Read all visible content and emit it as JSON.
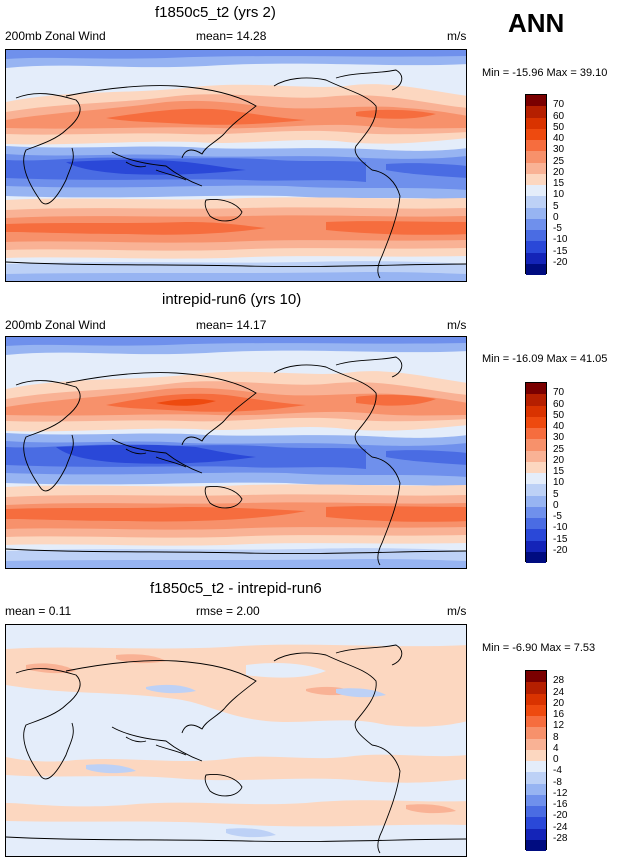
{
  "season": "ANN",
  "panels": [
    {
      "title": "f1850c5_t2 (yrs 2)",
      "left_label": "200mb Zonal Wind",
      "center_label": "mean=  14.28",
      "units": "m/s",
      "minmax": "Min = -15.96 Max =  39.10",
      "colorbar_ticks": [
        "70",
        "60",
        "50",
        "40",
        "30",
        "25",
        "20",
        "15",
        "10",
        "5",
        "0",
        "-5",
        "-10",
        "-15",
        "-20"
      ],
      "colorbar_colors": [
        "#7a0000",
        "#b51f00",
        "#d93300",
        "#ee4a0f",
        "#f66d3e",
        "#f7916b",
        "#f9b295",
        "#fcd7c0",
        "#e4edfa",
        "#bdd1f6",
        "#97b4f2",
        "#6f90ec",
        "#4a6ce3",
        "#2a48d8",
        "#1424b8",
        "#000c80"
      ]
    },
    {
      "title": "intrepid-run6 (yrs 10)",
      "left_label": "200mb Zonal Wind",
      "center_label": "mean=  14.17",
      "units": "m/s",
      "minmax": "Min = -16.09 Max =  41.05",
      "colorbar_ticks": [
        "70",
        "60",
        "50",
        "40",
        "30",
        "25",
        "20",
        "15",
        "10",
        "5",
        "0",
        "-5",
        "-10",
        "-15",
        "-20"
      ],
      "colorbar_colors": [
        "#7a0000",
        "#b51f00",
        "#d93300",
        "#ee4a0f",
        "#f66d3e",
        "#f7916b",
        "#f9b295",
        "#fcd7c0",
        "#e4edfa",
        "#bdd1f6",
        "#97b4f2",
        "#6f90ec",
        "#4a6ce3",
        "#2a48d8",
        "#1424b8",
        "#000c80"
      ]
    },
    {
      "title": "f1850c5_t2 - intrepid-run6",
      "left_label": "mean =   0.11",
      "center_label": "rmse =   2.00",
      "units": "m/s",
      "minmax": "Min =  -6.90 Max =   7.53",
      "colorbar_ticks": [
        "28",
        "24",
        "20",
        "16",
        "12",
        "8",
        "4",
        "0",
        "-4",
        "-8",
        "-12",
        "-16",
        "-20",
        "-24",
        "-28"
      ],
      "colorbar_colors": [
        "#7a0000",
        "#b51f00",
        "#d93300",
        "#ee4a0f",
        "#f66d3e",
        "#f7916b",
        "#f9b295",
        "#fcd7c0",
        "#e4edfa",
        "#bdd1f6",
        "#97b4f2",
        "#6f90ec",
        "#4a6ce3",
        "#2a48d8",
        "#1424b8",
        "#000c80"
      ]
    }
  ]
}
